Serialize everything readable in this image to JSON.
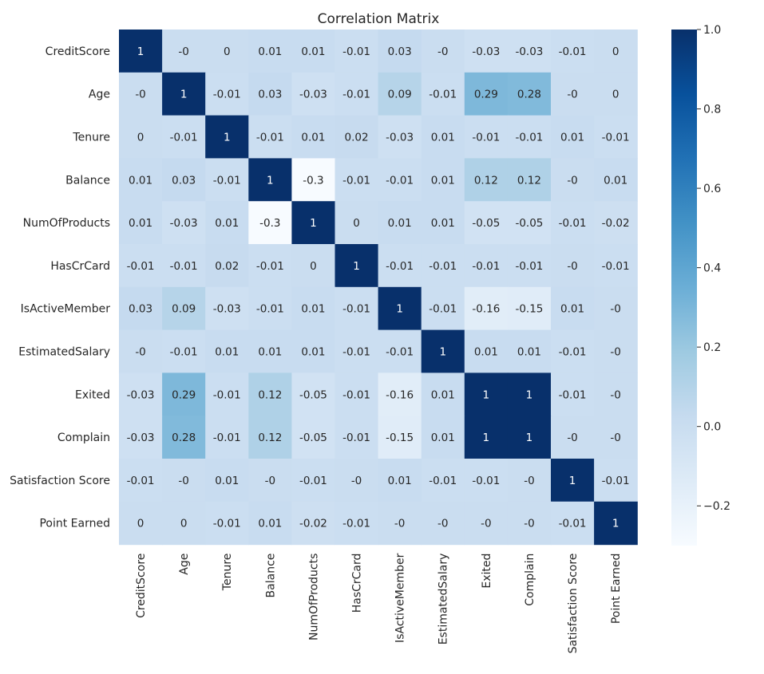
{
  "chart_data": {
    "type": "heatmap",
    "title": "Correlation Matrix",
    "xlabel": "",
    "ylabel": "",
    "labels": [
      "CreditScore",
      "Age",
      "Tenure",
      "Balance",
      "NumOfProducts",
      "HasCrCard",
      "IsActiveMember",
      "EstimatedSalary",
      "Exited",
      "Complain",
      "Satisfaction Score",
      "Point Earned"
    ],
    "matrix": [
      [
        "1",
        "-0",
        "0",
        "0.01",
        "0.01",
        "-0.01",
        "0.03",
        "-0",
        "-0.03",
        "-0.03",
        "-0.01",
        "0"
      ],
      [
        "-0",
        "1",
        "-0.01",
        "0.03",
        "-0.03",
        "-0.01",
        "0.09",
        "-0.01",
        "0.29",
        "0.28",
        "-0",
        "0"
      ],
      [
        "0",
        "-0.01",
        "1",
        "-0.01",
        "0.01",
        "0.02",
        "-0.03",
        "0.01",
        "-0.01",
        "-0.01",
        "0.01",
        "-0.01"
      ],
      [
        "0.01",
        "0.03",
        "-0.01",
        "1",
        "-0.3",
        "-0.01",
        "-0.01",
        "0.01",
        "0.12",
        "0.12",
        "-0",
        "0.01"
      ],
      [
        "0.01",
        "-0.03",
        "0.01",
        "-0.3",
        "1",
        "0",
        "0.01",
        "0.01",
        "-0.05",
        "-0.05",
        "-0.01",
        "-0.02"
      ],
      [
        "-0.01",
        "-0.01",
        "0.02",
        "-0.01",
        "0",
        "1",
        "-0.01",
        "-0.01",
        "-0.01",
        "-0.01",
        "-0",
        "-0.01"
      ],
      [
        "0.03",
        "0.09",
        "-0.03",
        "-0.01",
        "0.01",
        "-0.01",
        "1",
        "-0.01",
        "-0.16",
        "-0.15",
        "0.01",
        "-0"
      ],
      [
        "-0",
        "-0.01",
        "0.01",
        "0.01",
        "0.01",
        "-0.01",
        "-0.01",
        "1",
        "0.01",
        "0.01",
        "-0.01",
        "-0"
      ],
      [
        "-0.03",
        "0.29",
        "-0.01",
        "0.12",
        "-0.05",
        "-0.01",
        "-0.16",
        "0.01",
        "1",
        "1",
        "-0.01",
        "-0"
      ],
      [
        "-0.03",
        "0.28",
        "-0.01",
        "0.12",
        "-0.05",
        "-0.01",
        "-0.15",
        "0.01",
        "1",
        "1",
        "-0",
        "-0"
      ],
      [
        "-0.01",
        "-0",
        "0.01",
        "-0",
        "-0.01",
        "-0",
        "0.01",
        "-0.01",
        "-0.01",
        "-0",
        "1",
        "-0.01"
      ],
      [
        "0",
        "0",
        "-0.01",
        "0.01",
        "-0.02",
        "-0.01",
        "-0",
        "-0",
        "-0",
        "-0",
        "-0.01",
        "1"
      ]
    ],
    "colorbar": {
      "vmin": -0.3,
      "vmax": 1.0,
      "ticks": [
        1.0,
        0.8,
        0.6,
        0.4,
        0.2,
        0.0,
        -0.2
      ],
      "tick_labels": [
        "1.0",
        "0.8",
        "0.6",
        "0.4",
        "0.2",
        "0.0",
        "−0.2"
      ],
      "colormap": "Blues",
      "color_stops": [
        "#f7fbff",
        "#deebf7",
        "#c6dbef",
        "#9ecae1",
        "#6baed6",
        "#4292c6",
        "#2171b5",
        "#08519c",
        "#08306b"
      ]
    }
  }
}
